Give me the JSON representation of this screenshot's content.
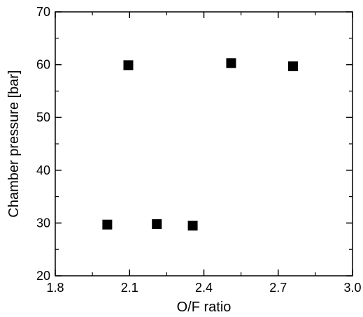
{
  "chart_data": {
    "type": "scatter",
    "title": "",
    "xlabel": "O/F ratio",
    "ylabel": "Chamber pressure [bar]",
    "xlim": [
      1.8,
      3.0
    ],
    "ylim": [
      20,
      70
    ],
    "xticks": [
      1.8,
      2.1,
      2.4,
      2.7,
      3.0
    ],
    "xtick_labels": [
      "1.8",
      "2.1",
      "2.4",
      "2.7",
      "3.0"
    ],
    "yticks": [
      20,
      30,
      40,
      50,
      60,
      70
    ],
    "ytick_labels": [
      "20",
      "30",
      "40",
      "50",
      "60",
      "70"
    ],
    "grid": false,
    "legend": "none",
    "marker": "square",
    "marker_color": "#000000",
    "series": [
      {
        "points": [
          {
            "x": 2.01,
            "y": 29.7
          },
          {
            "x": 2.095,
            "y": 59.9
          },
          {
            "x": 2.21,
            "y": 29.8
          },
          {
            "x": 2.355,
            "y": 29.5
          },
          {
            "x": 2.51,
            "y": 60.3
          },
          {
            "x": 2.76,
            "y": 59.7
          }
        ]
      }
    ]
  }
}
